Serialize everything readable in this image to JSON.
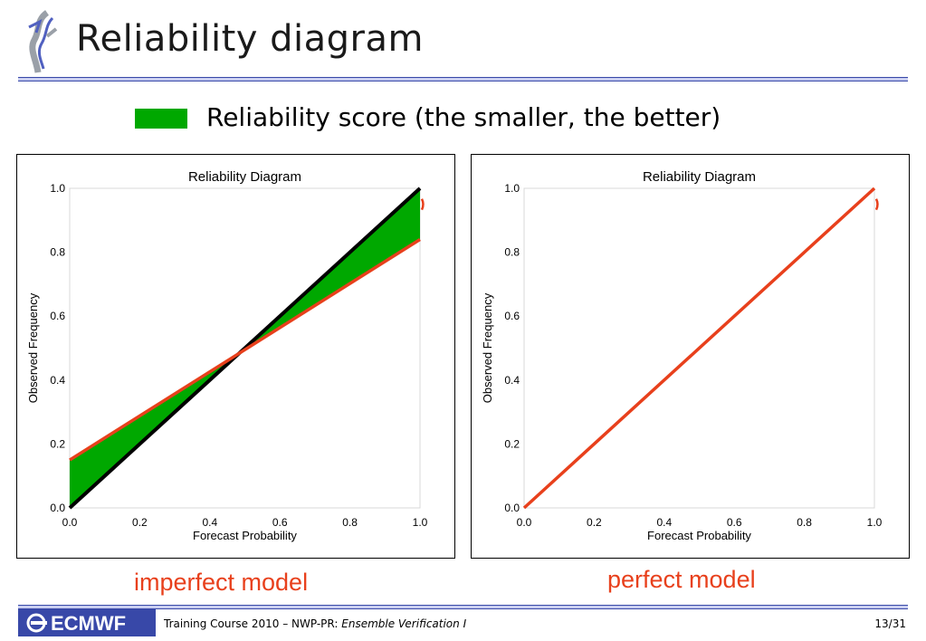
{
  "slide": {
    "title": "Reliability diagram",
    "legend_text": "Reliability score (the smaller, the better)",
    "legend_color": "#00a800"
  },
  "footer": {
    "logo_text": "ECMWF",
    "course": "Training Course 2010 – NWP-PR: ",
    "course_italic": "Ensemble Verification I",
    "page": "13/31"
  },
  "colors": {
    "model_line": "#e8401c",
    "diagonal": "#000000",
    "fill": "#00a800",
    "brand": "#3848a8"
  },
  "chart_data": [
    {
      "type": "line",
      "title": "Reliability Diagram",
      "xlabel": "Forecast Probability",
      "ylabel": "Observed Frequency",
      "caption": "imperfect model",
      "xlim": [
        0,
        1
      ],
      "ylim": [
        0,
        1
      ],
      "xticks": [
        "0.0",
        "0.2",
        "0.4",
        "0.6",
        "0.8",
        "1.0"
      ],
      "yticks": [
        "0.0",
        "0.2",
        "0.4",
        "0.6",
        "0.8",
        "1.0"
      ],
      "diagonal": {
        "x": [
          0,
          1
        ],
        "y": [
          0,
          1
        ]
      },
      "series": [
        {
          "x": [
            0,
            1
          ],
          "y": [
            0.15,
            0.84
          ]
        }
      ],
      "fill_between_diagonal": true
    },
    {
      "type": "line",
      "title": "Reliability Diagram",
      "xlabel": "Forecast Probability",
      "ylabel": "Observed Frequency",
      "caption": "perfect model",
      "xlim": [
        0,
        1
      ],
      "ylim": [
        0,
        1
      ],
      "xticks": [
        "0.0",
        "0.2",
        "0.4",
        "0.6",
        "0.8",
        "1.0"
      ],
      "yticks": [
        "0.0",
        "0.2",
        "0.4",
        "0.6",
        "0.8",
        "1.0"
      ],
      "diagonal": {
        "x": [
          0,
          1
        ],
        "y": [
          0,
          1
        ]
      },
      "series": [
        {
          "x": [
            0,
            1
          ],
          "y": [
            0,
            1
          ]
        }
      ],
      "fill_between_diagonal": false
    }
  ]
}
